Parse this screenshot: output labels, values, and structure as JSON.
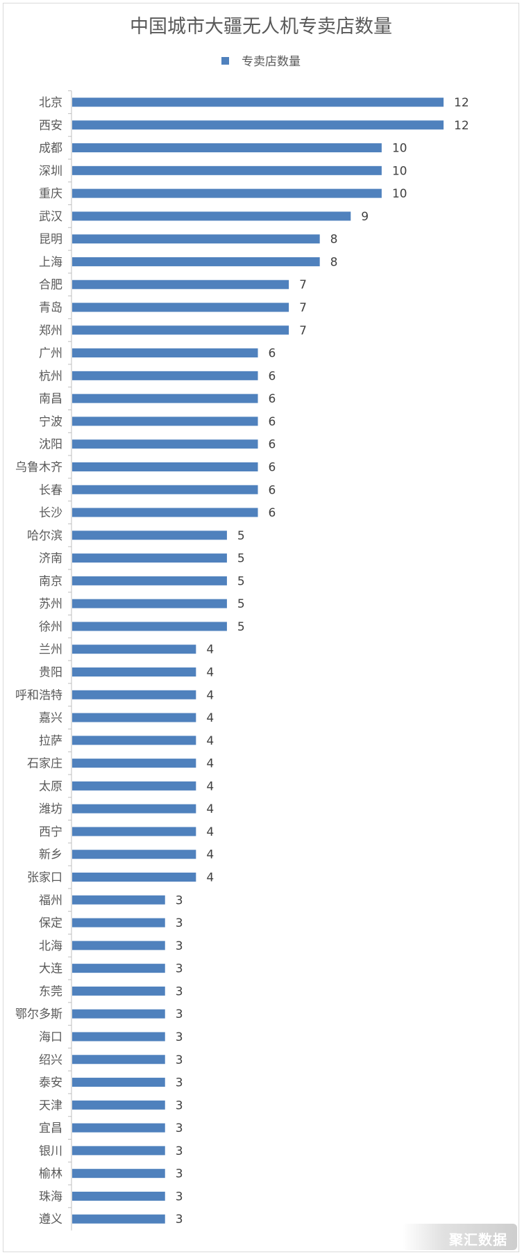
{
  "chart_data": {
    "type": "bar",
    "orientation": "horizontal",
    "title": "中国城市大疆无人机专卖店数量",
    "legend": {
      "position": "top",
      "entries": [
        "专卖店数量"
      ]
    },
    "series": [
      {
        "name": "专卖店数量",
        "color": "#4f81bd",
        "values": [
          12,
          12,
          10,
          10,
          10,
          9,
          8,
          8,
          7,
          7,
          7,
          6,
          6,
          6,
          6,
          6,
          6,
          6,
          6,
          5,
          5,
          5,
          5,
          5,
          4,
          4,
          4,
          4,
          4,
          4,
          4,
          4,
          4,
          4,
          4,
          3,
          3,
          3,
          3,
          3,
          3,
          3,
          3,
          3,
          3,
          3,
          3,
          3,
          3,
          3
        ]
      }
    ],
    "categories": [
      "北京",
      "西安",
      "成都",
      "深圳",
      "重庆",
      "武汉",
      "昆明",
      "上海",
      "合肥",
      "青岛",
      "郑州",
      "广州",
      "杭州",
      "南昌",
      "宁波",
      "沈阳",
      "乌鲁木齐",
      "长春",
      "长沙",
      "哈尔滨",
      "济南",
      "南京",
      "苏州",
      "徐州",
      "兰州",
      "贵阳",
      "呼和浩特",
      "嘉兴",
      "拉萨",
      "石家庄",
      "太原",
      "潍坊",
      "西宁",
      "新乡",
      "张家口",
      "福州",
      "保定",
      "北海",
      "大连",
      "东莞",
      "鄂尔多斯",
      "海口",
      "绍兴",
      "泰安",
      "天津",
      "宜昌",
      "银川",
      "榆林",
      "珠海",
      "遵义"
    ],
    "xlim": [
      0,
      12
    ],
    "grid": false,
    "data_labels": true
  },
  "watermark": "聚汇数据"
}
